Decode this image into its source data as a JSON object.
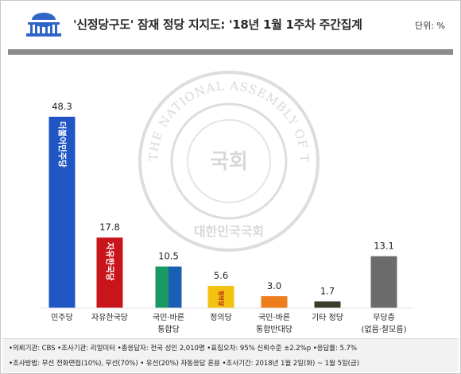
{
  "header": {
    "title": "'신정당구도' 잠재 정당 지지도: '18년 1월 1주차 주간집계",
    "unit": "단위: %"
  },
  "watermark": {
    "circle_text": "THE NATIONAL ASSEMBLY OF THE REPUBLIC OF KOREA",
    "center_text": "국회",
    "bottom_text": "대한민국국회"
  },
  "chart_data": {
    "type": "bar",
    "categories": [
      "민주당",
      "자유한국당",
      "국민·바른 통합당",
      "정의당",
      "국민·바른 통합반대당",
      "기타 정당",
      "무당층 (없음·잘모름)"
    ],
    "category_lines": [
      [
        "민주당"
      ],
      [
        "자유한국당"
      ],
      [
        "국민·바른",
        "통합당"
      ],
      [
        "정의당"
      ],
      [
        "국민·바른",
        "통합반대당"
      ],
      [
        "기타 정당"
      ],
      [
        "무당층",
        "(없음·잘모름)"
      ]
    ],
    "values": [
      48.3,
      17.8,
      10.5,
      5.6,
      3.0,
      1.7,
      13.1
    ],
    "value_labels": [
      "48.3",
      "17.8",
      "10.5",
      "5.6",
      "3.0",
      "1.7",
      "13.1"
    ],
    "bar_labels": [
      "더불어민주당",
      "자유한국당",
      "",
      "정의당",
      "",
      "",
      ""
    ],
    "colors": [
      "#1f56c3",
      "#c8151c",
      "#1a9a63",
      "#f3c10f",
      "#ee7d1e",
      "#3b3b2c",
      "#6b6b6b"
    ],
    "colors_secondary": [
      "",
      "",
      "#1a5fb4",
      "",
      "",
      "",
      ""
    ],
    "title": "",
    "xlabel": "",
    "ylabel": "",
    "ylim": [
      0,
      50
    ],
    "grid": false,
    "legend": "none"
  },
  "footer": {
    "line1": "•의뢰기관: CBS  •조사기관: 리얼미터  •총응답자: 전국 성인 2,010명  •표집오차: 95% 신뢰수준 ±2.2%p  •응답률: 5.7%",
    "line2": "•조사방법: 무선 전화면접(10%), 무선(70%) • 유선(20%) 자동응답 혼용  •조사기간: 2018년 1월 2일(화) ~ 1월 5일(금)"
  }
}
